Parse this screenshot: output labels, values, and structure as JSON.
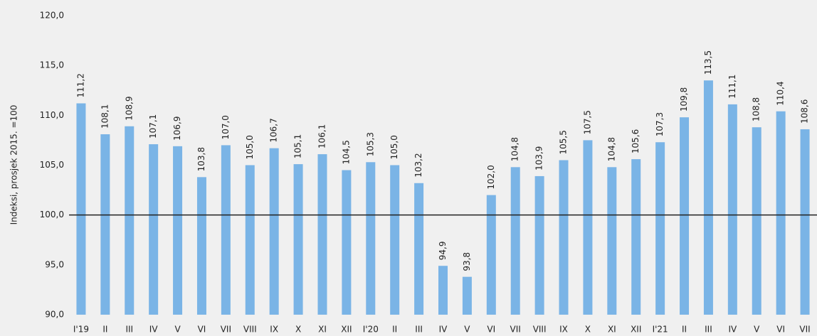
{
  "chart_data": {
    "type": "bar",
    "y_axis_label": "Indeksi, prosjek 2015. =100",
    "categories": [
      "I'19",
      "II",
      "III",
      "IV",
      "V",
      "VI",
      "VII",
      "VIII",
      "IX",
      "X",
      "XI",
      "XII",
      "I'20",
      "II",
      "III",
      "IV",
      "V",
      "VI",
      "VII",
      "VIII",
      "IX",
      "X",
      "XI",
      "XII",
      "I'21",
      "II",
      "III",
      "IV",
      "V",
      "VI",
      "VII"
    ],
    "values": [
      111.2,
      108.1,
      108.9,
      107.1,
      106.9,
      103.8,
      107.0,
      105.0,
      106.7,
      105.1,
      106.1,
      104.5,
      105.3,
      105.0,
      103.2,
      94.9,
      93.8,
      102.0,
      104.8,
      103.9,
      105.5,
      107.5,
      104.8,
      105.6,
      107.3,
      109.8,
      113.5,
      111.1,
      108.8,
      110.4,
      108.6
    ],
    "value_labels": [
      "111,2",
      "108,1",
      "108,9",
      "107,1",
      "106,9",
      "103,8",
      "107,0",
      "105,0",
      "106,7",
      "105,1",
      "106,1",
      "104,5",
      "105,3",
      "105,0",
      "103,2",
      "94,9",
      "93,8",
      "102,0",
      "104,8",
      "103,9",
      "105,5",
      "107,5",
      "104,8",
      "105,6",
      "107,3",
      "109,8",
      "113,5",
      "111,1",
      "108,8",
      "110,4",
      "108,6"
    ],
    "color": "#7ab4e6",
    "ylim": [
      90,
      120
    ],
    "yticks": [
      {
        "value": 90,
        "label": "90,0"
      },
      {
        "value": 95,
        "label": "95,0"
      },
      {
        "value": 100,
        "label": "100,0"
      },
      {
        "value": 105,
        "label": "105,0"
      },
      {
        "value": 110,
        "label": "110,0"
      },
      {
        "value": 115,
        "label": "115,0"
      },
      {
        "value": 120,
        "label": "120,0"
      }
    ],
    "reference_line": 100,
    "grid": false
  }
}
